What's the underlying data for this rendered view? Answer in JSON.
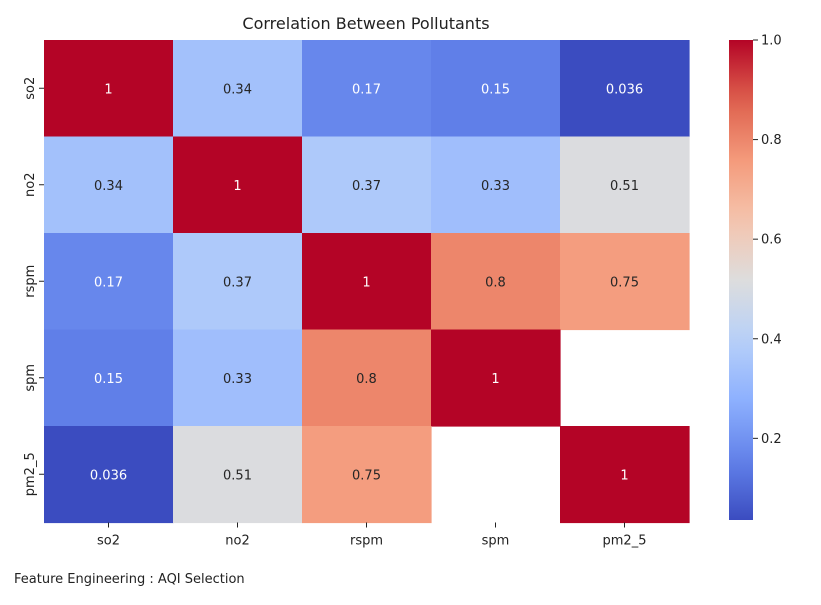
{
  "chart_data": {
    "type": "heatmap",
    "title": "Correlation Between Pollutants",
    "xlabel": "",
    "ylabel": "",
    "x_categories": [
      "so2",
      "no2",
      "rspm",
      "spm",
      "pm2_5"
    ],
    "y_categories": [
      "so2",
      "no2",
      "rspm",
      "spm",
      "pm2_5"
    ],
    "values": [
      [
        1,
        0.34,
        0.17,
        0.15,
        0.036
      ],
      [
        0.34,
        1,
        0.37,
        0.33,
        0.51
      ],
      [
        0.17,
        0.37,
        1,
        0.8,
        0.75
      ],
      [
        0.15,
        0.33,
        0.8,
        1,
        null
      ],
      [
        0.036,
        0.51,
        0.75,
        null,
        1
      ]
    ],
    "value_labels": [
      [
        "1",
        "0.34",
        "0.17",
        "0.15",
        "0.036"
      ],
      [
        "0.34",
        "1",
        "0.37",
        "0.33",
        "0.51"
      ],
      [
        "0.17",
        "0.37",
        "1",
        "0.8",
        "0.75"
      ],
      [
        "0.15",
        "0.33",
        "0.8",
        "1",
        ""
      ],
      [
        "0.036",
        "0.51",
        "0.75",
        "",
        "1"
      ]
    ],
    "colormap": "coolwarm",
    "vmin": 0.036,
    "vmax": 1.0,
    "colorbar": {
      "ticks": [
        0.2,
        0.4,
        0.6,
        0.8,
        1.0
      ],
      "tick_labels": [
        "0.2",
        "0.4",
        "0.6",
        "0.8",
        "1.0"
      ],
      "placement": "right"
    },
    "grid": false
  },
  "caption": "Feature Engineering : AQI Selection"
}
